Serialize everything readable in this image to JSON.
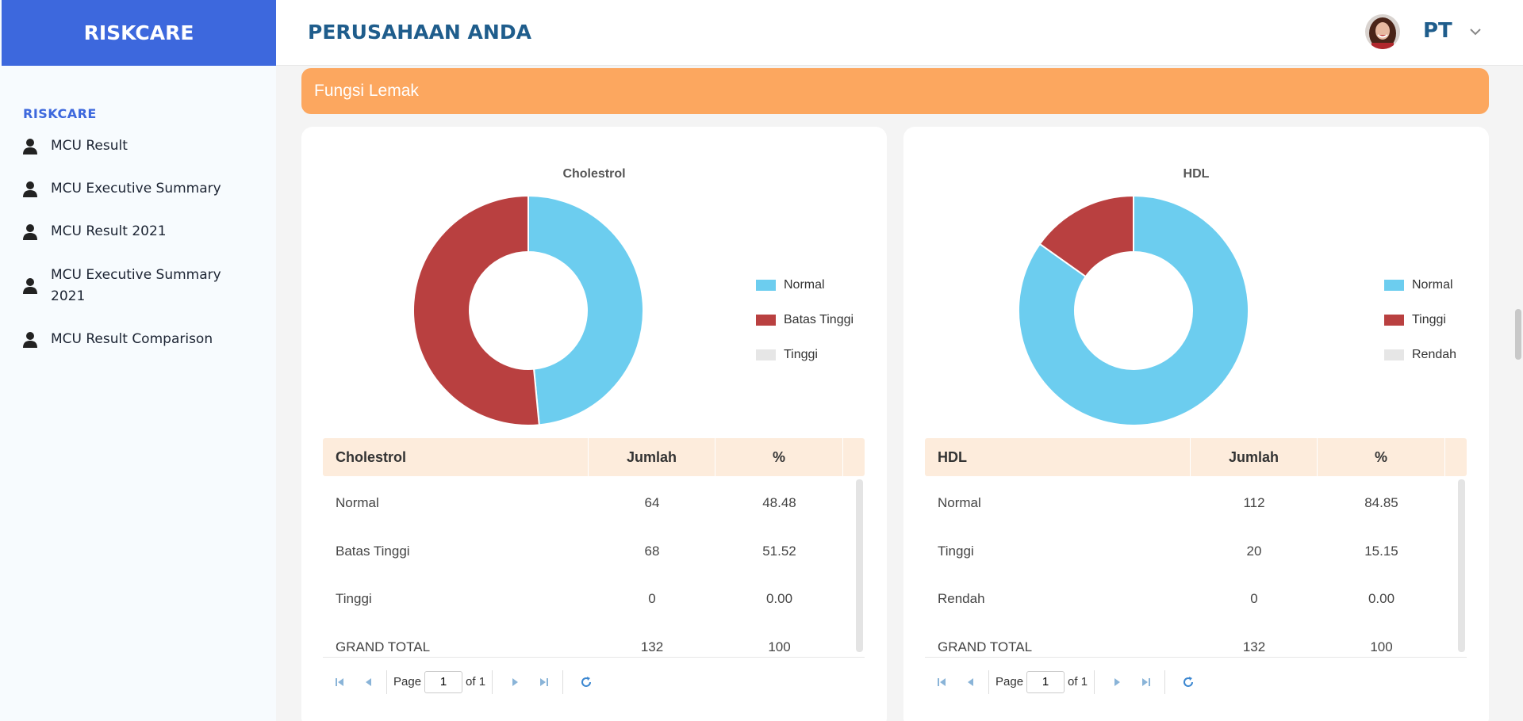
{
  "sidebar": {
    "brand": "RISKCARE",
    "section": "RISKCARE",
    "items": [
      {
        "label": "MCU Result"
      },
      {
        "label": "MCU Executive Summary"
      },
      {
        "label": "MCU Result 2021"
      },
      {
        "label": "MCU Executive Summary 2021"
      },
      {
        "label": "MCU Result Comparison"
      }
    ]
  },
  "header": {
    "company": "PERUSAHAAN ANDA",
    "user": "PT"
  },
  "banner": {
    "title": "Fungsi Lemak"
  },
  "colors": {
    "normal": "#6ccdef",
    "red": "#b94040",
    "grey": "#e6e6e6",
    "brand": "#3d68dd",
    "banner": "#fca75f"
  },
  "panels": [
    {
      "table": {
        "headers": [
          "Cholestrol",
          "Jumlah",
          "%"
        ],
        "rows": [
          [
            "Normal",
            "64",
            "48.48"
          ],
          [
            "Batas Tinggi",
            "68",
            "51.52"
          ],
          [
            "Tinggi",
            "0",
            "0.00"
          ],
          [
            "GRAND TOTAL",
            "132",
            "100"
          ]
        ]
      },
      "pager": {
        "page_label": "Page",
        "page_value": "1",
        "of_label": "of 1"
      }
    },
    {
      "table": {
        "headers": [
          "HDL",
          "Jumlah",
          "%"
        ],
        "rows": [
          [
            "Normal",
            "112",
            "84.85"
          ],
          [
            "Tinggi",
            "20",
            "15.15"
          ],
          [
            "Rendah",
            "0",
            "0.00"
          ],
          [
            "GRAND TOTAL",
            "132",
            "100"
          ]
        ]
      },
      "pager": {
        "page_label": "Page",
        "page_value": "1",
        "of_label": "of 1"
      }
    }
  ],
  "chart_data": [
    {
      "type": "pie",
      "title": "Cholestrol",
      "categories": [
        "Normal",
        "Batas Tinggi",
        "Tinggi"
      ],
      "values": [
        64,
        68,
        0
      ],
      "colors": [
        "#6ccdef",
        "#b94040",
        "#e6e6e6"
      ],
      "legend": "right"
    },
    {
      "type": "pie",
      "title": "HDL",
      "categories": [
        "Normal",
        "Tinggi",
        "Rendah"
      ],
      "values": [
        112,
        20,
        0
      ],
      "colors": [
        "#6ccdef",
        "#b94040",
        "#e6e6e6"
      ],
      "legend": "right"
    }
  ]
}
